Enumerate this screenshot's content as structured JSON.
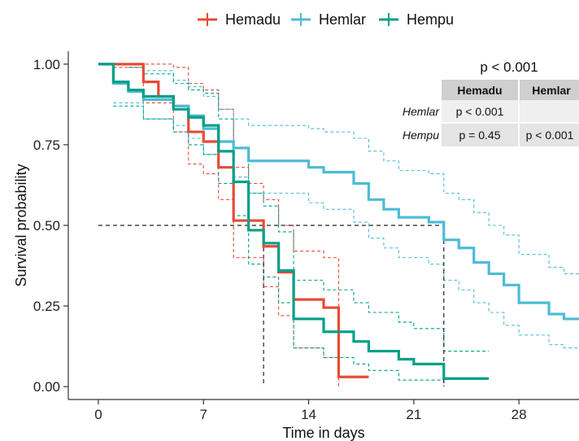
{
  "chart_data": {
    "type": "line",
    "subtype": "kaplan-meier",
    "xlabel": "Time in days",
    "ylabel": "Survival probability",
    "xlim": [
      -2,
      32
    ],
    "ylim": [
      -0.04,
      1.04
    ],
    "xticks": [
      0,
      7,
      14,
      21,
      28
    ],
    "yticks": [
      0.0,
      0.25,
      0.5,
      0.75,
      1.0
    ],
    "ytick_labels": [
      "0.00",
      "0.25",
      "0.50",
      "0.75",
      "1.00"
    ],
    "legend_position": "top",
    "grid": false,
    "pvalue_label": "p < 0.001",
    "median_lines": {
      "y": 0.5,
      "x_values": [
        11,
        23
      ]
    },
    "series": [
      {
        "name": "Hemadu",
        "color": "#E64B35",
        "steps": [
          [
            0,
            1.0
          ],
          [
            3,
            0.945
          ],
          [
            4,
            0.9
          ],
          [
            5,
            0.87
          ],
          [
            6,
            0.79
          ],
          [
            7,
            0.76
          ],
          [
            8,
            0.68
          ],
          [
            9,
            0.515
          ],
          [
            11,
            0.435
          ],
          [
            12,
            0.355
          ],
          [
            13,
            0.27
          ],
          [
            15,
            0.245
          ],
          [
            16,
            0.03
          ],
          [
            18,
            0.03
          ]
        ],
        "lower": [
          [
            1,
            0.99
          ],
          [
            3,
            0.88
          ],
          [
            5,
            0.79
          ],
          [
            6,
            0.69
          ],
          [
            7,
            0.66
          ],
          [
            8,
            0.58
          ],
          [
            9,
            0.4
          ],
          [
            11,
            0.31
          ],
          [
            12,
            0.22
          ],
          [
            13,
            0.12
          ],
          [
            15,
            0.09
          ],
          [
            16,
            0.0
          ]
        ],
        "upper": [
          [
            2,
            1.0
          ],
          [
            4,
            1.0
          ],
          [
            5,
            0.99
          ],
          [
            6,
            0.94
          ],
          [
            7,
            0.92
          ],
          [
            8,
            0.86
          ],
          [
            9,
            0.68
          ],
          [
            10,
            0.63
          ],
          [
            11,
            0.58
          ],
          [
            12,
            0.5
          ],
          [
            13,
            0.42
          ],
          [
            15,
            0.4
          ],
          [
            16,
            0.16
          ]
        ]
      },
      {
        "name": "Hemlar",
        "color": "#4DBBD5",
        "steps": [
          [
            0,
            1.0
          ],
          [
            1,
            0.94
          ],
          [
            2,
            0.915
          ],
          [
            3,
            0.89
          ],
          [
            5,
            0.87
          ],
          [
            6,
            0.84
          ],
          [
            7,
            0.8
          ],
          [
            8,
            0.76
          ],
          [
            9,
            0.74
          ],
          [
            10,
            0.7
          ],
          [
            14,
            0.68
          ],
          [
            15,
            0.665
          ],
          [
            17,
            0.63
          ],
          [
            18,
            0.58
          ],
          [
            19,
            0.55
          ],
          [
            20,
            0.525
          ],
          [
            22,
            0.51
          ],
          [
            23,
            0.455
          ],
          [
            24,
            0.43
          ],
          [
            25,
            0.385
          ],
          [
            26,
            0.35
          ],
          [
            27,
            0.315
          ],
          [
            28,
            0.26
          ],
          [
            30,
            0.225
          ],
          [
            31,
            0.21
          ],
          [
            32,
            0.21
          ]
        ],
        "lower": [
          [
            1,
            0.88
          ],
          [
            3,
            0.83
          ],
          [
            5,
            0.81
          ],
          [
            6,
            0.77
          ],
          [
            7,
            0.72
          ],
          [
            8,
            0.68
          ],
          [
            9,
            0.65
          ],
          [
            10,
            0.6
          ],
          [
            14,
            0.57
          ],
          [
            15,
            0.55
          ],
          [
            17,
            0.51
          ],
          [
            18,
            0.46
          ],
          [
            19,
            0.43
          ],
          [
            20,
            0.4
          ],
          [
            22,
            0.38
          ],
          [
            23,
            0.33
          ],
          [
            24,
            0.3
          ],
          [
            25,
            0.26
          ],
          [
            26,
            0.23
          ],
          [
            27,
            0.19
          ],
          [
            28,
            0.16
          ],
          [
            30,
            0.13
          ],
          [
            31,
            0.12
          ],
          [
            32,
            0.12
          ]
        ],
        "upper": [
          [
            1,
            1.0
          ],
          [
            3,
            0.98
          ],
          [
            5,
            0.95
          ],
          [
            6,
            0.93
          ],
          [
            7,
            0.9
          ],
          [
            8,
            0.86
          ],
          [
            9,
            0.83
          ],
          [
            10,
            0.81
          ],
          [
            14,
            0.8
          ],
          [
            15,
            0.79
          ],
          [
            17,
            0.77
          ],
          [
            18,
            0.73
          ],
          [
            19,
            0.7
          ],
          [
            20,
            0.67
          ],
          [
            22,
            0.66
          ],
          [
            23,
            0.6
          ],
          [
            24,
            0.58
          ],
          [
            25,
            0.54
          ],
          [
            26,
            0.5
          ],
          [
            27,
            0.47
          ],
          [
            28,
            0.41
          ],
          [
            30,
            0.37
          ],
          [
            31,
            0.35
          ],
          [
            32,
            0.35
          ]
        ]
      },
      {
        "name": "Hempu",
        "color": "#00A087",
        "steps": [
          [
            0,
            1.0
          ],
          [
            1,
            0.945
          ],
          [
            2,
            0.92
          ],
          [
            3,
            0.9
          ],
          [
            5,
            0.86
          ],
          [
            6,
            0.835
          ],
          [
            7,
            0.81
          ],
          [
            8,
            0.73
          ],
          [
            9,
            0.635
          ],
          [
            10,
            0.485
          ],
          [
            11,
            0.445
          ],
          [
            12,
            0.36
          ],
          [
            13,
            0.21
          ],
          [
            15,
            0.17
          ],
          [
            17,
            0.14
          ],
          [
            18,
            0.11
          ],
          [
            20,
            0.085
          ],
          [
            21,
            0.07
          ],
          [
            23,
            0.025
          ],
          [
            26,
            0.025
          ]
        ],
        "lower": [
          [
            1,
            0.87
          ],
          [
            3,
            0.83
          ],
          [
            5,
            0.79
          ],
          [
            6,
            0.75
          ],
          [
            7,
            0.72
          ],
          [
            8,
            0.63
          ],
          [
            9,
            0.53
          ],
          [
            10,
            0.38
          ],
          [
            11,
            0.34
          ],
          [
            12,
            0.26
          ],
          [
            13,
            0.12
          ],
          [
            15,
            0.09
          ],
          [
            17,
            0.07
          ],
          [
            18,
            0.05
          ],
          [
            20,
            0.02
          ],
          [
            23,
            0.0
          ]
        ],
        "upper": [
          [
            2,
            0.99
          ],
          [
            3,
            0.97
          ],
          [
            5,
            0.94
          ],
          [
            6,
            0.92
          ],
          [
            7,
            0.91
          ],
          [
            8,
            0.83
          ],
          [
            9,
            0.74
          ],
          [
            10,
            0.6
          ],
          [
            11,
            0.56
          ],
          [
            12,
            0.48
          ],
          [
            13,
            0.33
          ],
          [
            15,
            0.3
          ],
          [
            17,
            0.26
          ],
          [
            18,
            0.23
          ],
          [
            20,
            0.2
          ],
          [
            21,
            0.18
          ],
          [
            23,
            0.11
          ],
          [
            26,
            0.11
          ]
        ]
      }
    ],
    "pairwise_table": {
      "columns": [
        "Hemadu",
        "Hemlar"
      ],
      "rows": [
        {
          "label": "Hemlar",
          "values": [
            "p < 0.001",
            ""
          ]
        },
        {
          "label": "Hempu",
          "values": [
            "p = 0.45",
            "p < 0.001"
          ]
        }
      ]
    }
  }
}
